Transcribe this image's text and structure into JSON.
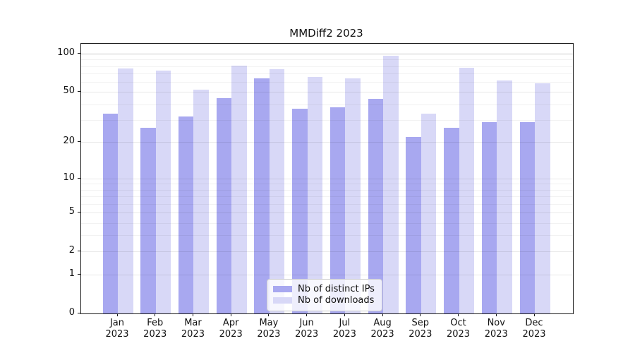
{
  "title": "MMDiff2 2023",
  "chart_data": {
    "type": "bar",
    "title": "MMDiff2 2023",
    "categories": [
      "Jan 2023",
      "Feb 2023",
      "Mar 2023",
      "Apr 2023",
      "May 2023",
      "Jun 2023",
      "Jul 2023",
      "Aug 2023",
      "Sep 2023",
      "Oct 2023",
      "Nov 2023",
      "Dec 2023"
    ],
    "series": [
      {
        "name": "Nb of distinct IPs",
        "key": "distinct-ips",
        "color": "#a8a8f0",
        "values": [
          34,
          26,
          32,
          45,
          64,
          37,
          38,
          44,
          22,
          26,
          29,
          29
        ]
      },
      {
        "name": "Nb of downloads",
        "key": "downloads",
        "color": "#d8d8f7",
        "values": [
          77,
          74,
          52,
          81,
          76,
          66,
          64,
          96,
          34,
          78,
          62,
          59
        ]
      }
    ],
    "xlabel": "",
    "ylabel": "",
    "yscale": "log(value+1)",
    "ylim": [
      0,
      101
    ],
    "yticks": [
      100,
      50,
      20,
      10,
      5,
      2,
      1,
      0
    ],
    "yticks_minor": [
      90,
      80,
      70,
      60,
      40,
      30,
      9,
      8,
      7,
      6,
      4,
      3
    ],
    "grid": "on",
    "legend_position": "lower center"
  }
}
